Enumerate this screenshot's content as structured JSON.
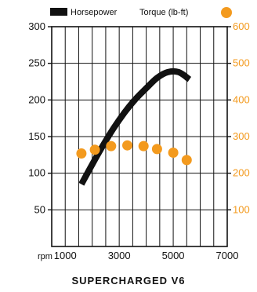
{
  "chart_data": {
    "type": "line",
    "title": "SUPERCHARGED V6",
    "x_unit_label": "rpm",
    "x_ticks": [
      1000,
      3000,
      5000,
      7000
    ],
    "xlim": [
      500,
      7000
    ],
    "y_left": {
      "ticks": [
        50,
        100,
        150,
        200,
        250,
        300
      ],
      "ylim": [
        0,
        300
      ]
    },
    "y_right": {
      "ticks": [
        100,
        200,
        300,
        400,
        500,
        600
      ],
      "ylim": [
        0,
        600
      ]
    },
    "grid": true,
    "legend_placement": "top",
    "series": [
      {
        "name": "Horsepower",
        "axis": "left",
        "style": "line",
        "color": "#111111",
        "x": [
          1600,
          2000,
          2400,
          2800,
          3200,
          3600,
          4000,
          4400,
          4800,
          5200,
          5600
        ],
        "y": [
          85,
          112,
          138,
          162,
          183,
          201,
          216,
          230,
          238,
          238,
          228
        ]
      },
      {
        "name": "Torque (lb-ft)",
        "axis": "right",
        "style": "scatter",
        "color": "#f39a1e",
        "x": [
          1600,
          2100,
          2700,
          3300,
          3900,
          4400,
          5000,
          5500
        ],
        "y": [
          254,
          264,
          274,
          276,
          274,
          266,
          256,
          236
        ]
      }
    ]
  }
}
